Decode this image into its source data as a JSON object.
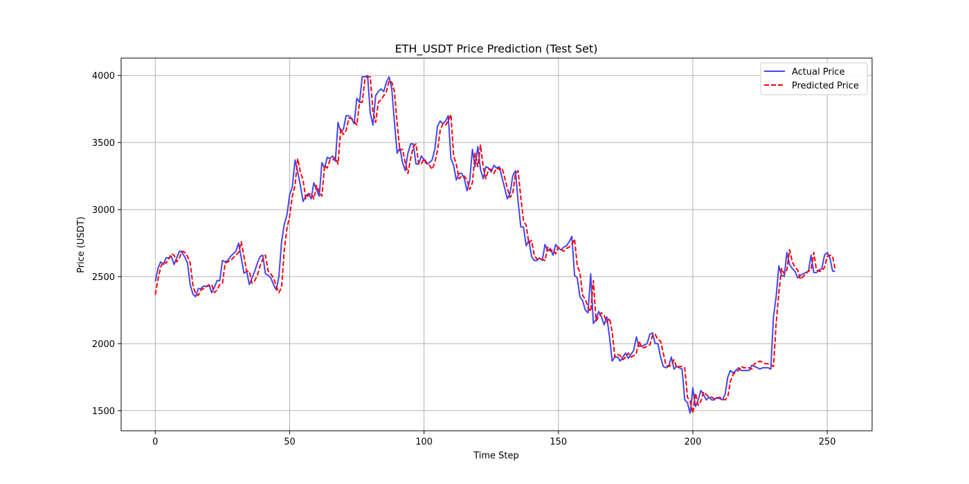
{
  "chart_data": {
    "type": "line",
    "title": "ETH_USDT Price Prediction (Test Set)",
    "xlabel": "Time Step",
    "ylabel": "Price (USDT)",
    "xlim": [
      -12.7,
      266.7
    ],
    "ylim": [
      1350,
      4130
    ],
    "xticks": [
      0,
      50,
      100,
      150,
      200,
      250
    ],
    "yticks": [
      1500,
      2000,
      2500,
      3000,
      3500,
      4000
    ],
    "grid": true,
    "legend_position": "top-right",
    "series": [
      {
        "name": "Actual Price",
        "color": "#4444ee",
        "style": "solid",
        "values": [
          2465,
          2560,
          2610,
          2590,
          2640,
          2640,
          2650,
          2590,
          2640,
          2690,
          2680,
          2645,
          2600,
          2440,
          2370,
          2350,
          2410,
          2410,
          2430,
          2425,
          2440,
          2380,
          2420,
          2470,
          2470,
          2620,
          2610,
          2620,
          2650,
          2670,
          2690,
          2750,
          2640,
          2525,
          2540,
          2440,
          2490,
          2540,
          2600,
          2650,
          2660,
          2520,
          2510,
          2490,
          2440,
          2400,
          2500,
          2760,
          2890,
          2960,
          3110,
          3170,
          3370,
          3280,
          3180,
          3060,
          3100,
          3120,
          3080,
          3200,
          3150,
          3100,
          3350,
          3310,
          3390,
          3380,
          3400,
          3360,
          3650,
          3580,
          3600,
          3700,
          3700,
          3680,
          3640,
          3830,
          3800,
          3990,
          3990,
          4000,
          3720,
          3630,
          3850,
          3880,
          3900,
          3880,
          3950,
          3990,
          3900,
          3650,
          3420,
          3460,
          3350,
          3290,
          3420,
          3490,
          3490,
          3340,
          3340,
          3400,
          3370,
          3340,
          3350,
          3370,
          3450,
          3620,
          3660,
          3640,
          3660,
          3700,
          3380,
          3330,
          3220,
          3270,
          3270,
          3230,
          3140,
          3220,
          3450,
          3320,
          3470,
          3300,
          3230,
          3320,
          3310,
          3280,
          3330,
          3310,
          3320,
          3240,
          3160,
          3080,
          3120,
          3250,
          3290,
          3060,
          2870,
          2870,
          2730,
          2770,
          2650,
          2620,
          2620,
          2640,
          2620,
          2740,
          2690,
          2710,
          2660,
          2740,
          2710,
          2700,
          2720,
          2730,
          2760,
          2800,
          2510,
          2490,
          2350,
          2320,
          2250,
          2230,
          2520,
          2150,
          2180,
          2240,
          2200,
          2140,
          2200,
          2050,
          1870,
          1900,
          1900,
          1870,
          1900,
          1930,
          1890,
          1920,
          1950,
          2050,
          1980,
          1980,
          1990,
          2000,
          2070,
          2080,
          2000,
          2000,
          1900,
          1830,
          1820,
          1830,
          1900,
          1810,
          1830,
          1820,
          1810,
          1580,
          1560,
          1480,
          1670,
          1530,
          1580,
          1650,
          1620,
          1580,
          1600,
          1580,
          1580,
          1600,
          1590,
          1580,
          1620,
          1750,
          1800,
          1780,
          1800,
          1820,
          1800,
          1800,
          1800,
          1800,
          1840,
          1830,
          1820,
          1810,
          1820,
          1820,
          1820,
          1810,
          2200,
          2350,
          2580,
          2510,
          2500,
          2680,
          2590,
          2560,
          2540,
          2490,
          2510,
          2520,
          2530,
          2540,
          2660,
          2530,
          2530,
          2550,
          2560,
          2660,
          2680,
          2640,
          2540,
          2540
        ]
      },
      {
        "name": "Predicted Price",
        "color": "#ff0000",
        "style": "dashed",
        "values": [
          2365,
          2480,
          2570,
          2610,
          2600,
          2630,
          2670,
          2660,
          2610,
          2640,
          2690,
          2680,
          2650,
          2600,
          2440,
          2370,
          2360,
          2400,
          2410,
          2430,
          2430,
          2440,
          2380,
          2400,
          2440,
          2450,
          2600,
          2610,
          2620,
          2640,
          2660,
          2680,
          2760,
          2650,
          2540,
          2540,
          2450,
          2470,
          2510,
          2580,
          2630,
          2660,
          2540,
          2520,
          2490,
          2430,
          2380,
          2420,
          2700,
          2860,
          2950,
          3100,
          3180,
          3380,
          3280,
          3220,
          3080,
          3110,
          3120,
          3080,
          3180,
          3130,
          3100,
          3330,
          3310,
          3370,
          3370,
          3390,
          3340,
          3600,
          3560,
          3590,
          3680,
          3680,
          3660,
          3630,
          3800,
          3800,
          3970,
          3990,
          3990,
          3730,
          3650,
          3800,
          3820,
          3850,
          3880,
          3960,
          3950,
          3880,
          3640,
          3440,
          3450,
          3350,
          3270,
          3380,
          3470,
          3490,
          3340,
          3340,
          3380,
          3350,
          3330,
          3300,
          3350,
          3440,
          3590,
          3640,
          3630,
          3660,
          3710,
          3400,
          3340,
          3230,
          3250,
          3250,
          3220,
          3150,
          3200,
          3420,
          3320,
          3480,
          3320,
          3230,
          3300,
          3300,
          3270,
          3310,
          3300,
          3310,
          3240,
          3160,
          3090,
          3120,
          3260,
          3290,
          3090,
          2920,
          2880,
          2750,
          2770,
          2660,
          2630,
          2630,
          2630,
          2620,
          2720,
          2690,
          2700,
          2670,
          2720,
          2700,
          2690,
          2710,
          2720,
          2740,
          2780,
          2580,
          2530,
          2360,
          2330,
          2270,
          2240,
          2470,
          2170,
          2200,
          2230,
          2210,
          2160,
          2190,
          2090,
          1900,
          1920,
          1910,
          1880,
          1900,
          1930,
          1900,
          1910,
          1930,
          2020,
          1970,
          1970,
          1980,
          1990,
          2060,
          2070,
          2030,
          2020,
          1930,
          1840,
          1830,
          1840,
          1880,
          1820,
          1830,
          1830,
          1820,
          1600,
          1570,
          1480,
          1630,
          1540,
          1570,
          1640,
          1620,
          1600,
          1600,
          1590,
          1590,
          1600,
          1590,
          1580,
          1600,
          1720,
          1770,
          1790,
          1800,
          1830,
          1820,
          1820,
          1820,
          1810,
          1850,
          1860,
          1870,
          1860,
          1850,
          1850,
          1840,
          1830,
          2150,
          2380,
          2560,
          2520,
          2550,
          2700,
          2610,
          2570,
          2550,
          2480,
          2500,
          2520,
          2540,
          2550,
          2680,
          2550,
          2540,
          2540,
          2570,
          2650,
          2660,
          2650,
          2550
        ]
      }
    ]
  }
}
